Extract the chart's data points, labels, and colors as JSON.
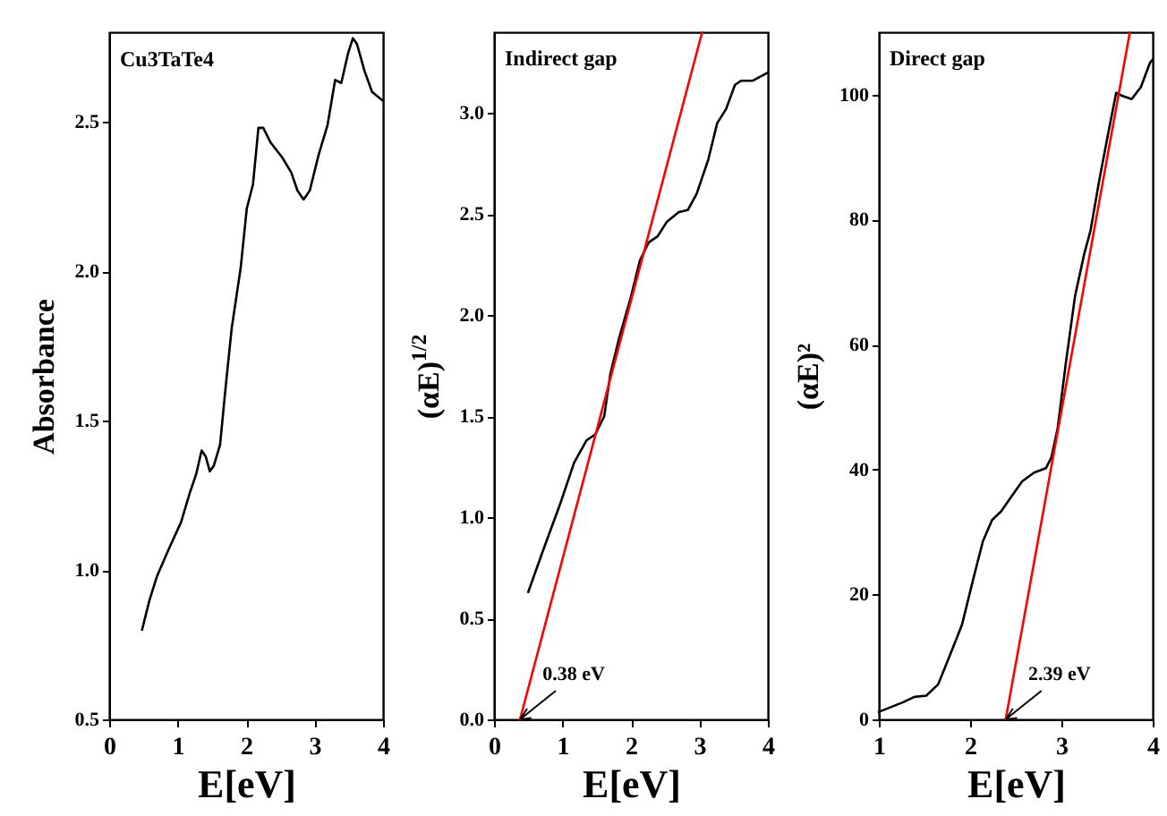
{
  "chart_data": [
    {
      "type": "line",
      "title": "Cu3TaTe4",
      "xlabel": "E[eV]",
      "ylabel": "Absorbance",
      "xlim": [
        0,
        4
      ],
      "ylim": [
        0.5,
        2.8
      ],
      "xticks": [
        0,
        1,
        2,
        3,
        4
      ],
      "yticks": [
        {
          "value": 0.5,
          "label": "0.5"
        },
        {
          "value": 1,
          "label": "1.0"
        },
        {
          "value": 1.5,
          "label": "1.5"
        },
        {
          "value": 2,
          "label": "2.0"
        },
        {
          "value": 2.5,
          "label": "2.5"
        }
      ],
      "grid": false,
      "legend": false,
      "series": [
        {
          "color": "#000000",
          "x": [
            0.48,
            0.59,
            0.7,
            0.87,
            1.05,
            1.18,
            1.27,
            1.35,
            1.41,
            1.47,
            1.53,
            1.62,
            1.7,
            1.79,
            1.92,
            2.01,
            2.1,
            2.18,
            2.25,
            2.36,
            2.53,
            2.66,
            2.75,
            2.84,
            2.93,
            3.06,
            3.19,
            3.3,
            3.39,
            3.49,
            3.56,
            3.62,
            3.73,
            3.84,
            4.0
          ],
          "values": [
            0.8,
            0.9,
            0.98,
            1.07,
            1.16,
            1.26,
            1.32,
            1.4,
            1.38,
            1.33,
            1.35,
            1.42,
            1.61,
            1.81,
            2.01,
            2.21,
            2.29,
            2.48,
            2.48,
            2.43,
            2.38,
            2.33,
            2.27,
            2.24,
            2.27,
            2.39,
            2.49,
            2.64,
            2.63,
            2.73,
            2.78,
            2.76,
            2.67,
            2.6,
            2.57
          ]
        }
      ]
    },
    {
      "type": "line",
      "title": "Indirect gap",
      "xlabel": "E[eV]",
      "ylabel": "(αE)$^{1/2}$",
      "xlim": [
        0,
        4
      ],
      "ylim": [
        0,
        3.4
      ],
      "xticks": [
        0,
        1,
        2,
        3,
        4
      ],
      "yticks": [
        {
          "value": 0,
          "label": "0.0"
        },
        0.5,
        {
          "value": 1,
          "label": "1.0"
        },
        1.5,
        {
          "value": 2,
          "label": "2.0"
        },
        2.5,
        {
          "value": 3,
          "label": "3.0"
        }
      ],
      "grid": false,
      "legend": false,
      "annotations": [
        {
          "text": "0.38 eV",
          "x": 0.38,
          "y": 0
        }
      ],
      "series": [
        {
          "color": "#000000",
          "x": [
            0.5,
            0.7,
            0.96,
            1.17,
            1.35,
            1.48,
            1.61,
            1.7,
            1.83,
            2.0,
            2.13,
            2.26,
            2.39,
            2.52,
            2.7,
            2.83,
            2.96,
            3.13,
            3.26,
            3.39,
            3.52,
            3.61,
            3.78,
            4.0
          ],
          "values": [
            0.63,
            0.82,
            1.06,
            1.27,
            1.38,
            1.41,
            1.5,
            1.71,
            1.89,
            2.09,
            2.27,
            2.36,
            2.39,
            2.46,
            2.51,
            2.52,
            2.6,
            2.77,
            2.95,
            3.02,
            3.14,
            3.16,
            3.16,
            3.2
          ]
        },
        {
          "color": "#ff0000",
          "x": [
            0.38,
            3.04
          ],
          "values": [
            0,
            3.4
          ]
        }
      ]
    },
    {
      "type": "line",
      "title": "Direct gap",
      "xlabel": "E[eV]",
      "ylabel": "(αE)²",
      "xlim": [
        1,
        4
      ],
      "ylim": [
        0,
        110
      ],
      "xticks": [
        1,
        2,
        3,
        4
      ],
      "yticks": [
        0,
        20,
        40,
        60,
        80,
        100
      ],
      "grid": false,
      "legend": false,
      "annotations": [
        {
          "text": "2.39 eV",
          "x": 2.39,
          "y": 0
        }
      ],
      "series": [
        {
          "color": "#000000",
          "x": [
            1.0,
            1.26,
            1.39,
            1.52,
            1.65,
            1.78,
            1.91,
            2.04,
            2.14,
            2.24,
            2.34,
            2.43,
            2.57,
            2.7,
            2.83,
            2.89,
            2.96,
            3.05,
            3.15,
            3.25,
            3.32,
            3.41,
            3.51,
            3.6,
            3.67,
            3.77,
            3.87,
            3.97,
            4.0
          ],
          "values": [
            1.2,
            2.7,
            3.6,
            3.8,
            5.6,
            10.3,
            15.1,
            22.8,
            28.5,
            31.9,
            33.3,
            35.2,
            38.1,
            39.5,
            40.2,
            41.9,
            46.7,
            57.2,
            67.8,
            74.5,
            78.3,
            85.9,
            93.6,
            100.3,
            99.8,
            99.3,
            101.2,
            105.1,
            105.6
          ]
        },
        {
          "color": "#ff0000",
          "x": [
            2.39,
            3.75
          ],
          "values": [
            0,
            110
          ]
        }
      ]
    }
  ]
}
